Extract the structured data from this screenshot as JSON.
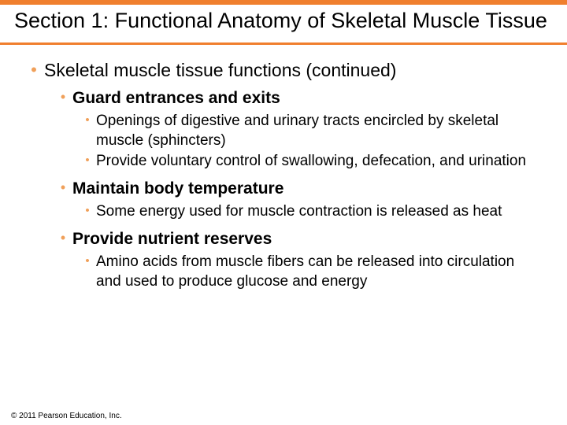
{
  "colors": {
    "top_bar": "#f07f2e",
    "title_underline": "#f07f2e",
    "bullet": "#f0a05a",
    "text": "#000000",
    "background": "#ffffff"
  },
  "title": "Section 1: Functional Anatomy of Skeletal Muscle Tissue",
  "main_bullet": "Skeletal muscle tissue functions (continued)",
  "items": [
    {
      "heading": "Guard entrances and exits",
      "subs": [
        "Openings of digestive and urinary tracts encircled by skeletal muscle (sphincters)",
        "Provide voluntary control of swallowing, defecation, and urination"
      ]
    },
    {
      "heading": "Maintain body temperature",
      "subs": [
        "Some energy used for muscle contraction is released as heat"
      ]
    },
    {
      "heading": "Provide nutrient reserves",
      "subs": [
        "Amino acids from muscle fibers can be released into circulation and used to produce glucose and energy"
      ]
    }
  ],
  "copyright": "© 2011 Pearson Education, Inc."
}
